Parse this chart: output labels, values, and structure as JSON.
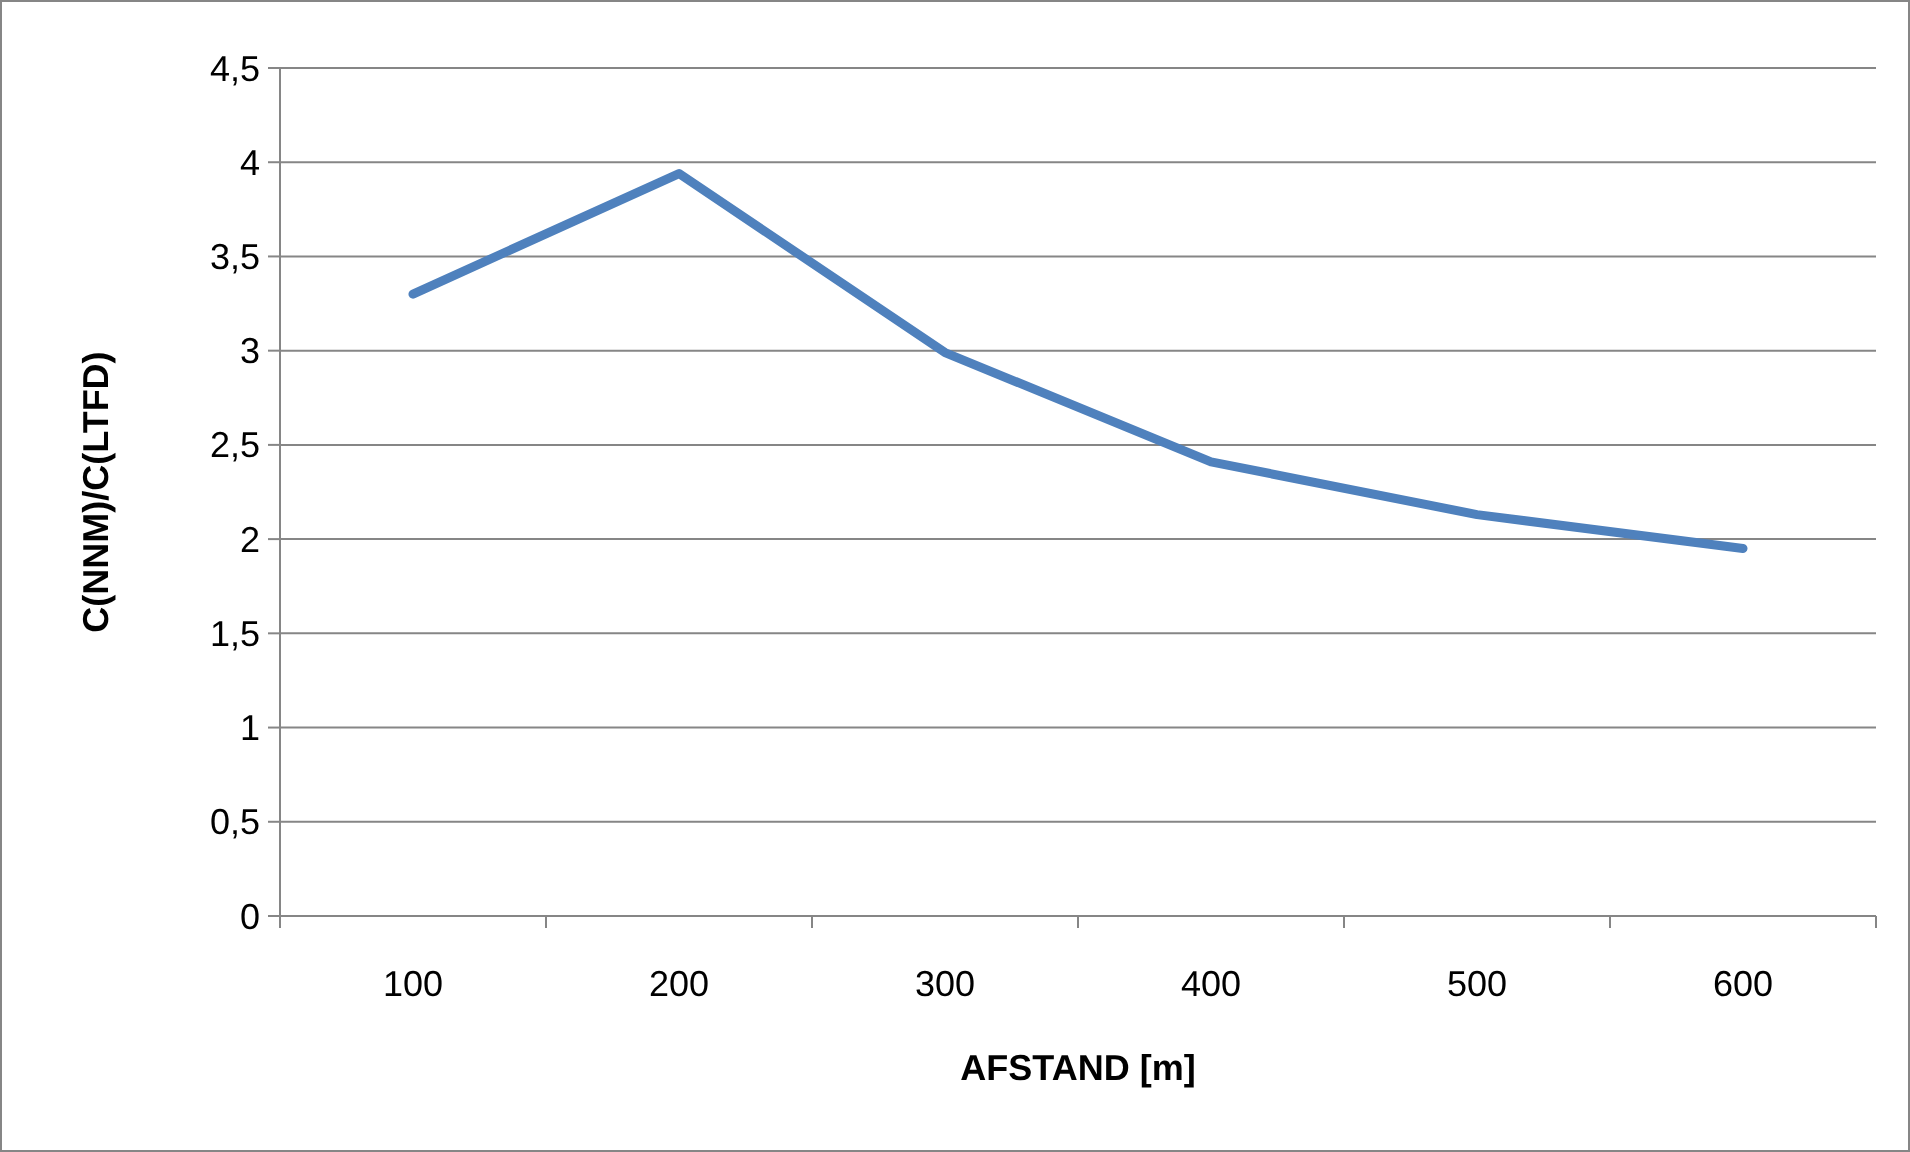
{
  "chart_data": {
    "type": "line",
    "xlabel": "AFSTAND [m]",
    "ylabel": "C(NNM)/C(LTFD)",
    "categories": [
      "100",
      "200",
      "300",
      "400",
      "500",
      "600"
    ],
    "series": [
      {
        "color": "#4f81bd",
        "values": [
          3.3,
          3.94,
          2.99,
          2.41,
          2.13,
          1.95
        ]
      }
    ],
    "ylim": [
      0,
      4.5
    ],
    "yticks": [
      0,
      {
        "value": 0.5,
        "label": "0,5"
      },
      1,
      {
        "value": 1.5,
        "label": "1,5"
      },
      2,
      {
        "value": 2.5,
        "label": "2,5"
      },
      3,
      {
        "value": 3.5,
        "label": "3,5"
      },
      4,
      {
        "value": 4.5,
        "label": "4,5"
      }
    ],
    "grid": "y",
    "marker": "none",
    "line_style": "solid"
  }
}
